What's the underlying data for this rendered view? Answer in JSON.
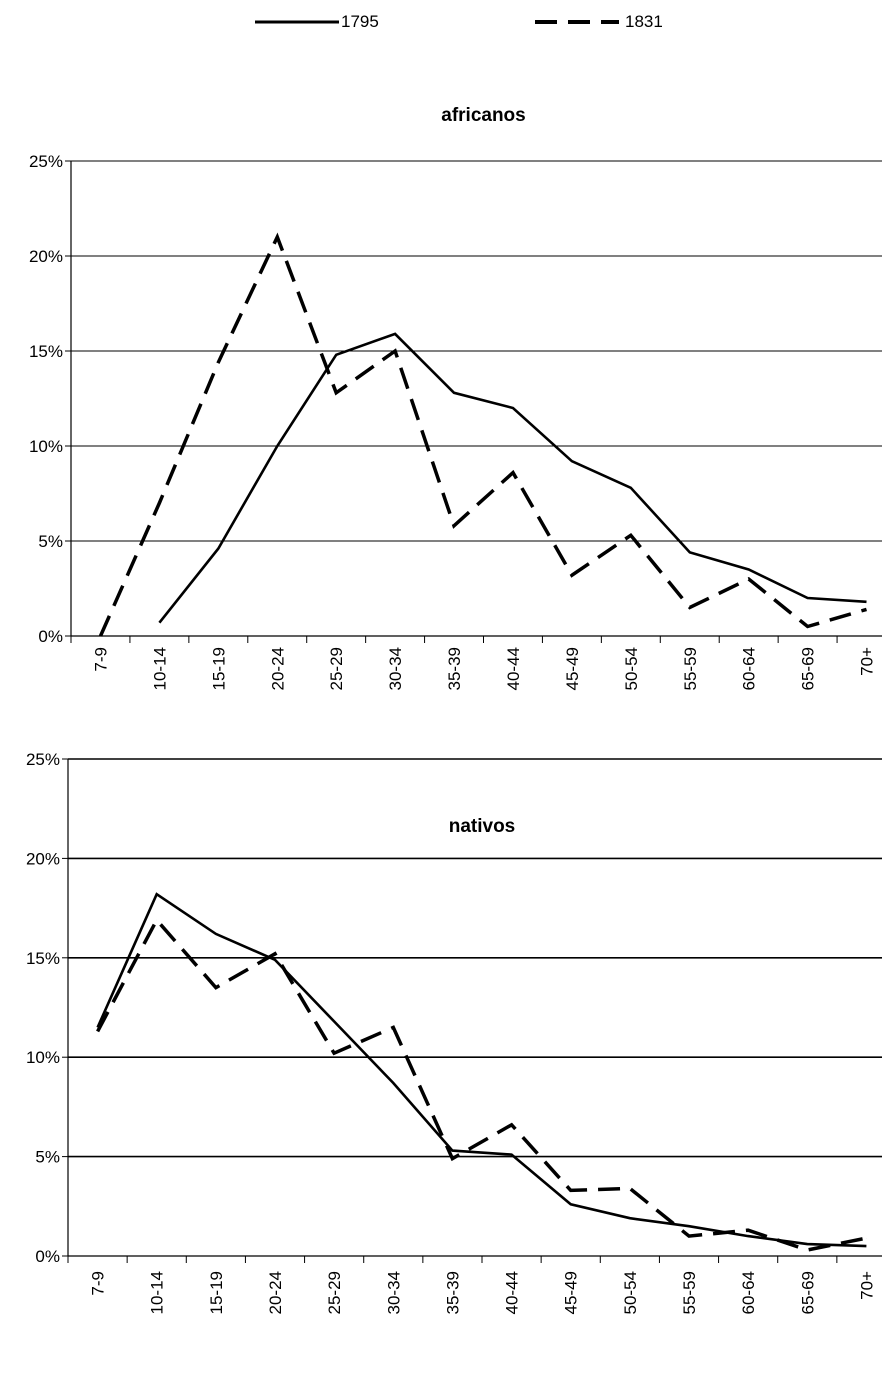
{
  "legend": {
    "items": [
      {
        "label": "1795",
        "style": "solid"
      },
      {
        "label": "1831",
        "style": "dashed"
      }
    ]
  },
  "chart_data": [
    {
      "type": "line",
      "title": "africanos",
      "xlabel": "",
      "ylabel": "",
      "categories": [
        "7-9",
        "10-14",
        "15-19",
        "20-24",
        "25-29",
        "30-34",
        "35-39",
        "40-44",
        "45-49",
        "50-54",
        "55-59",
        "60-64",
        "65-69",
        "70+"
      ],
      "ylim": [
        0,
        25
      ],
      "yticks": [
        "0%",
        "5%",
        "10%",
        "15%",
        "20%",
        "25%"
      ],
      "grid": true,
      "series": [
        {
          "name": "1795",
          "style": "solid",
          "values": [
            null,
            0.7,
            4.6,
            10.0,
            14.8,
            15.9,
            12.8,
            12.0,
            9.2,
            7.8,
            4.4,
            3.5,
            2.0,
            1.8
          ]
        },
        {
          "name": "1831",
          "style": "dashed",
          "values": [
            0.0,
            7.0,
            14.4,
            21.0,
            12.8,
            15.0,
            5.8,
            8.6,
            3.2,
            5.3,
            1.5,
            3.0,
            0.5,
            1.4
          ]
        }
      ]
    },
    {
      "type": "line",
      "title": "nativos",
      "xlabel": "",
      "ylabel": "",
      "categories": [
        "7-9",
        "10-14",
        "15-19",
        "20-24",
        "25-29",
        "30-34",
        "35-39",
        "40-44",
        "45-49",
        "50-54",
        "55-59",
        "60-64",
        "65-69",
        "70+"
      ],
      "ylim": [
        0,
        25
      ],
      "yticks": [
        "0%",
        "5%",
        "10%",
        "15%",
        "20%",
        "25%"
      ],
      "grid": true,
      "series": [
        {
          "name": "1795",
          "style": "solid",
          "values": [
            11.5,
            18.2,
            16.2,
            14.9,
            11.8,
            8.7,
            5.3,
            5.1,
            2.6,
            1.9,
            1.5,
            1.0,
            0.6,
            0.5
          ]
        },
        {
          "name": "1831",
          "style": "dashed",
          "values": [
            11.3,
            16.9,
            13.5,
            15.2,
            10.2,
            11.5,
            4.9,
            6.6,
            3.3,
            3.4,
            1.0,
            1.3,
            0.3,
            0.9
          ]
        }
      ]
    }
  ]
}
